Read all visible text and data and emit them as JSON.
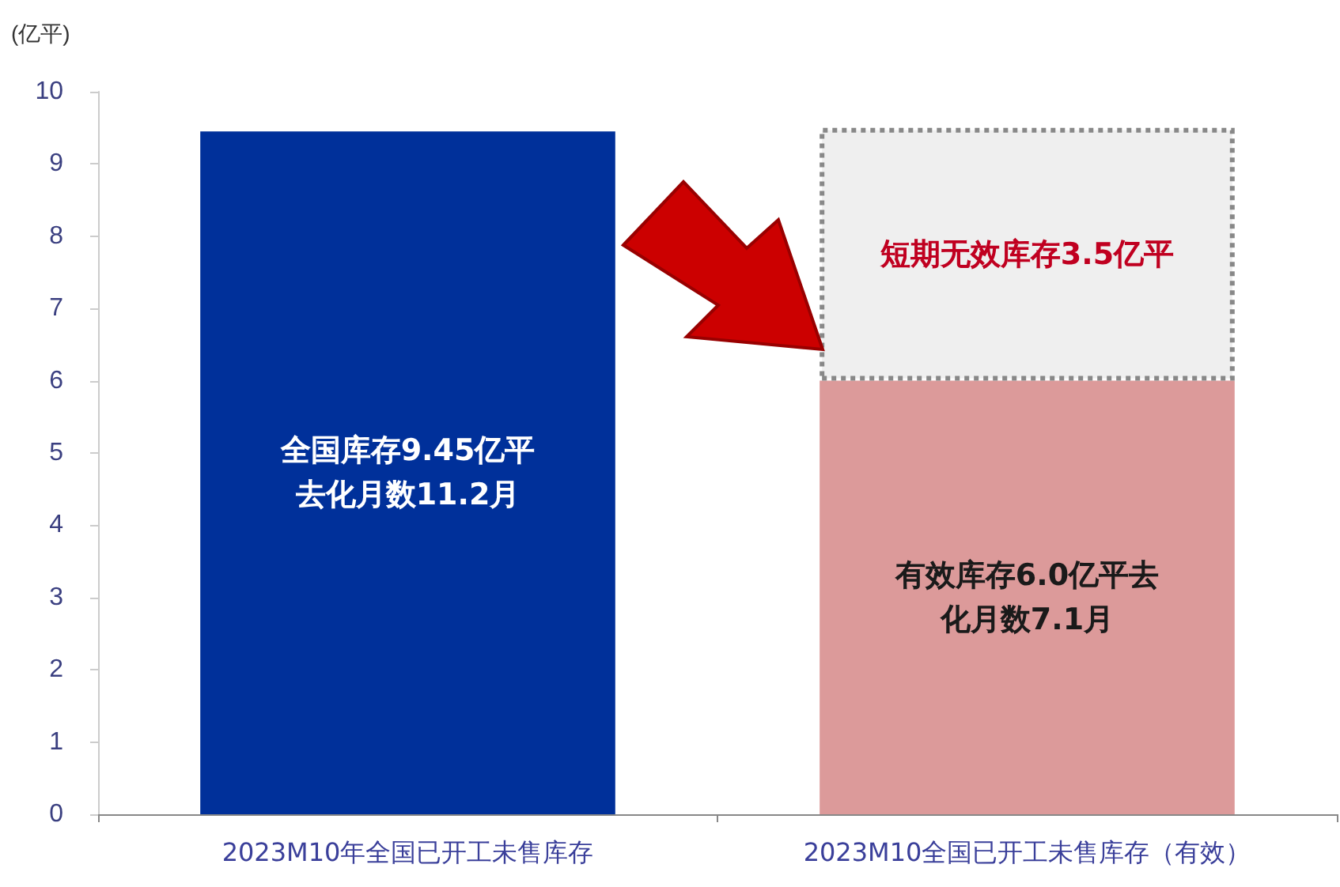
{
  "chart_data": {
    "type": "bar",
    "stacked": true,
    "ylabel": "(亿平)",
    "categories": [
      "2023M10年全国已开工未售库存",
      "2023M10全国已开工未售库存（有效）"
    ],
    "series": [
      {
        "color": "#00309a",
        "values": [
          9.45,
          null
        ],
        "value_labels": [
          "全国库存9.45亿平去化月数11.2月",
          null
        ]
      },
      {
        "color": "#dc9a9a",
        "values": [
          null,
          6.0
        ],
        "value_labels": [
          null,
          "有效库存6.0亿平去化月数7.1月"
        ]
      },
      {
        "color": "#efefef",
        "values": [
          null,
          3.5
        ],
        "line_style": "dotted",
        "value_labels": [
          null,
          "短期无效库存3.5亿平"
        ]
      }
    ],
    "ylim": [
      0,
      10
    ],
    "yticks": [
      0,
      1,
      2,
      3,
      4,
      5,
      6,
      7,
      8,
      9,
      10
    ],
    "grid": false
  }
}
